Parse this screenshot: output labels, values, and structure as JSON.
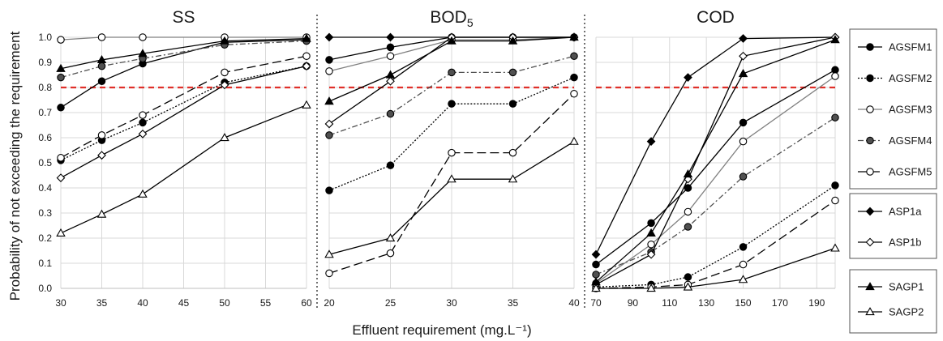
{
  "chart_data": {
    "type": "line",
    "ylabel": "Probability of not exceeding the requirement",
    "xlabel": "Effluent requirement (mg.L⁻¹)",
    "ylim": [
      0,
      1.0
    ],
    "yticks": [
      "0.0",
      "0.1",
      "0.2",
      "0.3",
      "0.4",
      "0.5",
      "0.6",
      "0.7",
      "0.8",
      "0.9",
      "1.0"
    ],
    "reference_line": {
      "y": 0.8,
      "color": "#e0302a",
      "style": "dashed"
    },
    "grid": true,
    "legend_position": "right",
    "legend_groups": [
      [
        "AGSFM1",
        "AGSFM2",
        "AGSFM3",
        "AGSFM4",
        "AGSFM5"
      ],
      [
        "ASP1a",
        "ASP1b"
      ],
      [
        "SAGP1",
        "SAGP2"
      ]
    ],
    "series_style": {
      "AGSFM1": {
        "marker": "circle",
        "fill": "#000000",
        "dash": "solid",
        "color": "#000000"
      },
      "AGSFM2": {
        "marker": "circle",
        "fill": "#000000",
        "dash": "dotted",
        "color": "#000000"
      },
      "AGSFM3": {
        "marker": "circle",
        "fill": "#ffffff",
        "dash": "solid",
        "color": "#808080"
      },
      "AGSFM4": {
        "marker": "circle",
        "fill": "#505050",
        "dash": "dashdot",
        "color": "#505050"
      },
      "AGSFM5": {
        "marker": "circle",
        "fill": "#ffffff",
        "dash": "longdash",
        "color": "#000000"
      },
      "ASP1a": {
        "marker": "diamond",
        "fill": "#000000",
        "dash": "solid",
        "color": "#000000"
      },
      "ASP1b": {
        "marker": "diamond",
        "fill": "#ffffff",
        "dash": "solid",
        "color": "#000000"
      },
      "SAGP1": {
        "marker": "triangle",
        "fill": "#000000",
        "dash": "solid",
        "color": "#000000"
      },
      "SAGP2": {
        "marker": "triangle",
        "fill": "#ffffff",
        "dash": "solid",
        "color": "#000000"
      }
    },
    "panels": [
      {
        "title": "SS",
        "title_sub": "",
        "xlim": [
          30,
          60
        ],
        "xticks": [
          30,
          35,
          40,
          45,
          50,
          55,
          60
        ],
        "series": [
          {
            "name": "AGSFM1",
            "x": [
              30,
              35,
              40,
              50,
              60
            ],
            "y": [
              0.72,
              0.825,
              0.895,
              0.98,
              0.99
            ]
          },
          {
            "name": "AGSFM2",
            "x": [
              30,
              35,
              40,
              50,
              60
            ],
            "y": [
              0.51,
              0.59,
              0.66,
              0.82,
              0.885
            ]
          },
          {
            "name": "AGSFM3",
            "x": [
              30,
              35,
              40,
              50,
              60
            ],
            "y": [
              0.99,
              1.0,
              1.0,
              1.0,
              1.0
            ]
          },
          {
            "name": "AGSFM4",
            "x": [
              30,
              35,
              40,
              50,
              60
            ],
            "y": [
              0.84,
              0.885,
              0.915,
              0.97,
              0.985
            ]
          },
          {
            "name": "AGSFM5",
            "x": [
              30,
              35,
              40,
              50,
              60
            ],
            "y": [
              0.52,
              0.61,
              0.69,
              0.86,
              0.925
            ]
          },
          {
            "name": "ASP1b",
            "x": [
              30,
              35,
              40,
              50,
              60
            ],
            "y": [
              0.44,
              0.53,
              0.615,
              0.81,
              0.885
            ]
          },
          {
            "name": "SAGP1",
            "x": [
              30,
              35,
              40,
              50,
              60
            ],
            "y": [
              0.875,
              0.91,
              0.935,
              0.985,
              0.995
            ]
          },
          {
            "name": "SAGP2",
            "x": [
              30,
              35,
              40,
              50,
              60
            ],
            "y": [
              0.22,
              0.295,
              0.375,
              0.6,
              0.73
            ]
          }
        ]
      },
      {
        "title": "BOD",
        "title_sub": "5",
        "xlim": [
          20,
          40
        ],
        "xticks": [
          20,
          25,
          30,
          35,
          40
        ],
        "series": [
          {
            "name": "AGSFM1",
            "x": [
              20,
              25,
              30,
              35,
              40
            ],
            "y": [
              0.91,
              0.96,
              1.0,
              1.0,
              1.0
            ]
          },
          {
            "name": "AGSFM2",
            "x": [
              20,
              25,
              30,
              35,
              40
            ],
            "y": [
              0.39,
              0.49,
              0.735,
              0.735,
              0.84
            ]
          },
          {
            "name": "AGSFM3",
            "x": [
              20,
              25,
              30,
              35,
              40
            ],
            "y": [
              0.865,
              0.925,
              0.99,
              0.99,
              1.0
            ]
          },
          {
            "name": "AGSFM4",
            "x": [
              20,
              25,
              30,
              35,
              40
            ],
            "y": [
              0.61,
              0.695,
              0.86,
              0.86,
              0.925
            ]
          },
          {
            "name": "AGSFM5",
            "x": [
              20,
              25,
              30,
              35,
              40
            ],
            "y": [
              0.06,
              0.14,
              0.54,
              0.54,
              0.775
            ]
          },
          {
            "name": "ASP1a",
            "x": [
              20,
              25,
              30,
              35,
              40
            ],
            "y": [
              1.0,
              1.0,
              1.0,
              1.0,
              1.0
            ]
          },
          {
            "name": "ASP1b",
            "x": [
              20,
              25,
              30,
              35,
              40
            ],
            "y": [
              0.655,
              0.825,
              1.0,
              1.0,
              1.0
            ]
          },
          {
            "name": "SAGP1",
            "x": [
              20,
              25,
              30,
              35,
              40
            ],
            "y": [
              0.745,
              0.85,
              0.985,
              0.985,
              1.0
            ]
          },
          {
            "name": "SAGP2",
            "x": [
              20,
              25,
              30,
              35,
              40
            ],
            "y": [
              0.135,
              0.2,
              0.435,
              0.435,
              0.585
            ]
          }
        ]
      },
      {
        "title": "COD",
        "title_sub": "",
        "xlim": [
          70,
          200
        ],
        "xticks": [
          70,
          90,
          110,
          130,
          150,
          170,
          190
        ],
        "series": [
          {
            "name": "AGSFM1",
            "x": [
              70,
              100,
              120,
              150,
              200
            ],
            "y": [
              0.095,
              0.26,
              0.4,
              0.66,
              0.87
            ]
          },
          {
            "name": "AGSFM2",
            "x": [
              70,
              100,
              120,
              150,
              200
            ],
            "y": [
              0.005,
              0.015,
              0.045,
              0.165,
              0.41
            ]
          },
          {
            "name": "AGSFM3",
            "x": [
              70,
              100,
              120,
              150,
              200
            ],
            "y": [
              0.02,
              0.175,
              0.305,
              0.585,
              0.845
            ]
          },
          {
            "name": "AGSFM4",
            "x": [
              70,
              100,
              120,
              150,
              200
            ],
            "y": [
              0.055,
              0.145,
              0.245,
              0.445,
              0.68
            ]
          },
          {
            "name": "AGSFM5",
            "x": [
              70,
              100,
              120,
              150,
              200
            ],
            "y": [
              0.0,
              0.005,
              0.015,
              0.095,
              0.35
            ]
          },
          {
            "name": "ASP1a",
            "x": [
              70,
              100,
              120,
              150,
              200
            ],
            "y": [
              0.135,
              0.585,
              0.84,
              0.995,
              1.0
            ]
          },
          {
            "name": "ASP1b",
            "x": [
              70,
              100,
              120,
              150,
              200
            ],
            "y": [
              0.015,
              0.135,
              0.435,
              0.925,
              1.0
            ]
          },
          {
            "name": "SAGP1",
            "x": [
              70,
              100,
              120,
              150,
              200
            ],
            "y": [
              0.025,
              0.22,
              0.455,
              0.855,
              0.99
            ]
          },
          {
            "name": "SAGP2",
            "x": [
              70,
              100,
              120,
              150,
              200
            ],
            "y": [
              0.0,
              0.0,
              0.005,
              0.035,
              0.16
            ]
          }
        ]
      }
    ]
  }
}
